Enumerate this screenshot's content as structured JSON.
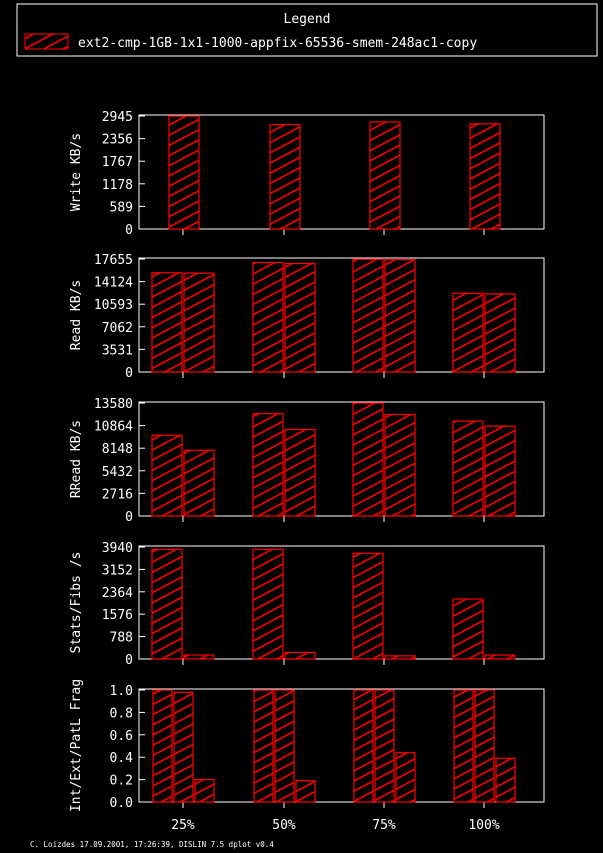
{
  "legend": {
    "title": "Legend",
    "entry": "ext2-cmp-1GB-1x1-1000-appfix-65536-smem-248ac1-copy"
  },
  "footer": "C. Loizdes 17.09.2001, 17:26:39, DISLIN 7.5 dplot v0.4",
  "colors": {
    "bar_stroke": "#ff0000",
    "hatch": "#ff0000",
    "axis": "#ffffff",
    "background": "#000000"
  },
  "chart_data": [
    {
      "type": "bar",
      "ylabel": "Write KB/s",
      "ylim": [
        0,
        2945
      ],
      "yticks": [
        "0",
        "589",
        "1178",
        "1767",
        "2356",
        "2945"
      ],
      "categories": [
        "25%",
        "50%",
        "75%",
        "100%"
      ],
      "series": [
        {
          "values": [
            2945,
            2720,
            2790,
            2740
          ]
        }
      ]
    },
    {
      "type": "bar",
      "ylabel": "Read KB/s",
      "ylim": [
        0,
        17655
      ],
      "yticks": [
        "0",
        "3531",
        "7062",
        "10593",
        "14124",
        "17655"
      ],
      "categories": [
        "25%",
        "50%",
        "75%",
        "100%"
      ],
      "series": [
        {
          "values": [
            15500,
            17100,
            17600,
            12300
          ]
        },
        {
          "values": [
            15450,
            16950,
            17550,
            12200
          ]
        }
      ]
    },
    {
      "type": "bar",
      "ylabel": "RRead KB/s",
      "ylim": [
        0,
        13580
      ],
      "yticks": [
        "0",
        "2716",
        "5432",
        "8148",
        "10864",
        "13580"
      ],
      "categories": [
        "25%",
        "50%",
        "75%",
        "100%"
      ],
      "series": [
        {
          "values": [
            9700,
            12300,
            13580,
            11400
          ]
        },
        {
          "values": [
            7900,
            10400,
            12200,
            10800
          ]
        }
      ]
    },
    {
      "type": "bar",
      "ylabel": "Stats/Fibs /s",
      "ylim": [
        0,
        3940
      ],
      "yticks": [
        "0",
        "788",
        "1576",
        "2364",
        "3152",
        "3940"
      ],
      "categories": [
        "25%",
        "50%",
        "75%",
        "100%"
      ],
      "series": [
        {
          "values": [
            3860,
            3860,
            3720,
            2110
          ]
        },
        {
          "values": [
            140,
            230,
            110,
            140
          ]
        }
      ]
    },
    {
      "type": "bar",
      "ylabel": "Int/Ext/PatL Frag",
      "ylim": [
        0,
        1.0
      ],
      "yticks": [
        "0.0",
        "0.2",
        "0.4",
        "0.6",
        "0.8",
        "1.0"
      ],
      "categories": [
        "25%",
        "50%",
        "75%",
        "100%"
      ],
      "series": [
        {
          "values": [
            1.0,
            1.0,
            1.0,
            1.0
          ]
        },
        {
          "values": [
            0.98,
            1.0,
            1.0,
            1.0
          ]
        },
        {
          "values": [
            0.2,
            0.19,
            0.44,
            0.39
          ]
        }
      ]
    }
  ],
  "xlabels": [
    "25%",
    "50%",
    "75%",
    "100%"
  ]
}
